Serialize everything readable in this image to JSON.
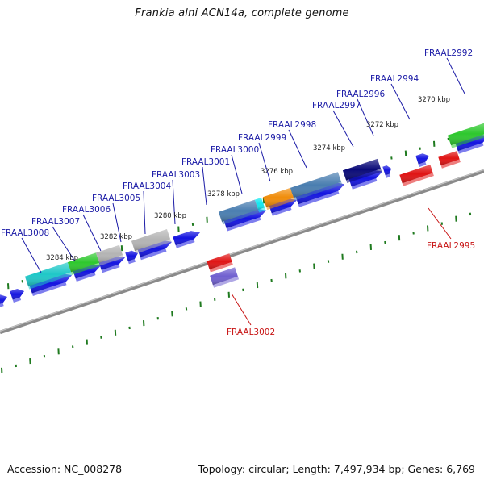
{
  "title": "Frankia alni ACN14a, complete genome",
  "footer": {
    "accession": "Accession: NC_008278",
    "summary": "Topology: circular; Length: 7,497,934 bp; Genes: 6,769"
  },
  "colors": {
    "backbone": "#8a8a8a",
    "tick": "#1f7a1f",
    "forward_label": "#1a1aa6",
    "reverse_label": "#c81414",
    "cds": "#1414e0",
    "reverse_gene": "#e01414"
  },
  "scale_labels": [
    "3284 kbp",
    "3282 kbp",
    "3280 kbp",
    "3278 kbp",
    "3276 kbp",
    "3274 kbp",
    "3272 kbp",
    "3270 kbp"
  ],
  "forward_genes": [
    {
      "label": "FRAAL3008",
      "color": "#1fc8c8"
    },
    {
      "label": "FRAAL3007",
      "color": "#2ec82e"
    },
    {
      "label": "FRAAL3006",
      "color": "#b4b4b4"
    },
    {
      "label": "FRAAL3005",
      "color": "#1414e0"
    },
    {
      "label": "FRAAL3004",
      "color": "#b4b4b4"
    },
    {
      "label": "FRAAL3003",
      "color": "#1414e0"
    },
    {
      "label": "FRAAL3001",
      "color": "#4a7eb0"
    },
    {
      "label": "FRAAL3000",
      "color": "#12e8f0"
    },
    {
      "label": "FRAAL2999",
      "color": "#f08c0a"
    },
    {
      "label": "FRAAL2998",
      "color": "#4a7eb0"
    },
    {
      "label": "FRAAL2997",
      "color": "#0a0a78"
    },
    {
      "label": "FRAAL2996",
      "color": "#1414e0"
    },
    {
      "label": "FRAAL2994",
      "color": "#1414e0"
    },
    {
      "label": "FRAAL2992",
      "color": "#2ec82e"
    }
  ],
  "reverse_genes": [
    {
      "label": "FRAAL3002",
      "color": "#7060d0"
    },
    {
      "label": "FRAAL2995",
      "color": "#e01414"
    }
  ]
}
